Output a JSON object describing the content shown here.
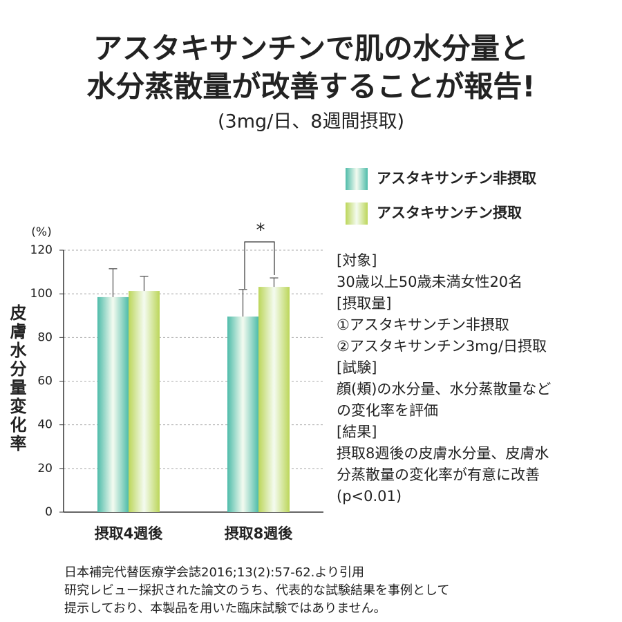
{
  "chart_data": {
    "type": "bar",
    "title": [
      "アスタキサンチンで肌の水分量と",
      "水分蒸散量が改善することが報告!"
    ],
    "subtitle": "(3mg/日、8週間摂取)",
    "y_unit": "(%)",
    "y_label": "皮膚水分量変化率",
    "categories": [
      "摂取4週後",
      "摂取8週後"
    ],
    "series": [
      {
        "name": "アスタキサンチン非摂取",
        "color": "#4fbcaa",
        "values": [
          98.5,
          89.6
        ],
        "errors": [
          13,
          12.4
        ]
      },
      {
        "name": "アスタキサンチン摂取",
        "color": "#bcd65a",
        "values": [
          101.3,
          103.2
        ],
        "errors": [
          6.7,
          4.1
        ]
      }
    ],
    "significance": "*",
    "ylim": [
      0,
      120
    ],
    "yticks": [
      0,
      20,
      40,
      60,
      80,
      100,
      120
    ],
    "grid": true,
    "notes": [
      "[対象]",
      "30歳以上50歳未満女性20名",
      "[摂取量]",
      "①アスタキサンチン非摂取",
      "②アスタキサンチン3mg/日摂取",
      "[試験]",
      "顔(頬)の水分量、水分蒸散量など",
      "の変化率を評価",
      "[結果]",
      "摂取8週後の皮膚水分量、皮膚水",
      "分蒸散量の変化率が有意に改善",
      "(p<0.01)"
    ],
    "footer": [
      "日本補完代替医療学会誌2016;13(2):57-62.より引用",
      "研究レビュー採択された論文のうち、代表的な試験結果を事例として",
      "提示しており、本製品を用いた臨床試験ではありません。"
    ]
  }
}
